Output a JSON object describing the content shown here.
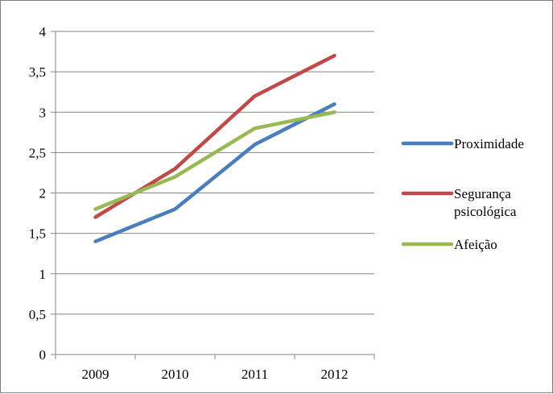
{
  "chart_data": {
    "type": "line",
    "categories": [
      "2009",
      "2010",
      "2011",
      "2012"
    ],
    "series": [
      {
        "name": "Proximidade",
        "values": [
          1.4,
          1.8,
          2.6,
          3.1
        ],
        "color": "#4a7ebb"
      },
      {
        "name": "Segurança psicológica",
        "name_lines": [
          "Segurança",
          "psicológica"
        ],
        "values": [
          1.7,
          2.3,
          3.2,
          3.7
        ],
        "color": "#be4b48"
      },
      {
        "name": "Afeição",
        "values": [
          1.8,
          2.2,
          2.8,
          3.0
        ],
        "color": "#98b954"
      }
    ],
    "y_ticks": [
      "0",
      "0,5",
      "1",
      "1,5",
      "2",
      "2,5",
      "3",
      "3,5",
      "4"
    ],
    "ylim": [
      0,
      4
    ],
    "title": "",
    "xlabel": "",
    "ylabel": "",
    "grid": true,
    "legend": "right"
  }
}
